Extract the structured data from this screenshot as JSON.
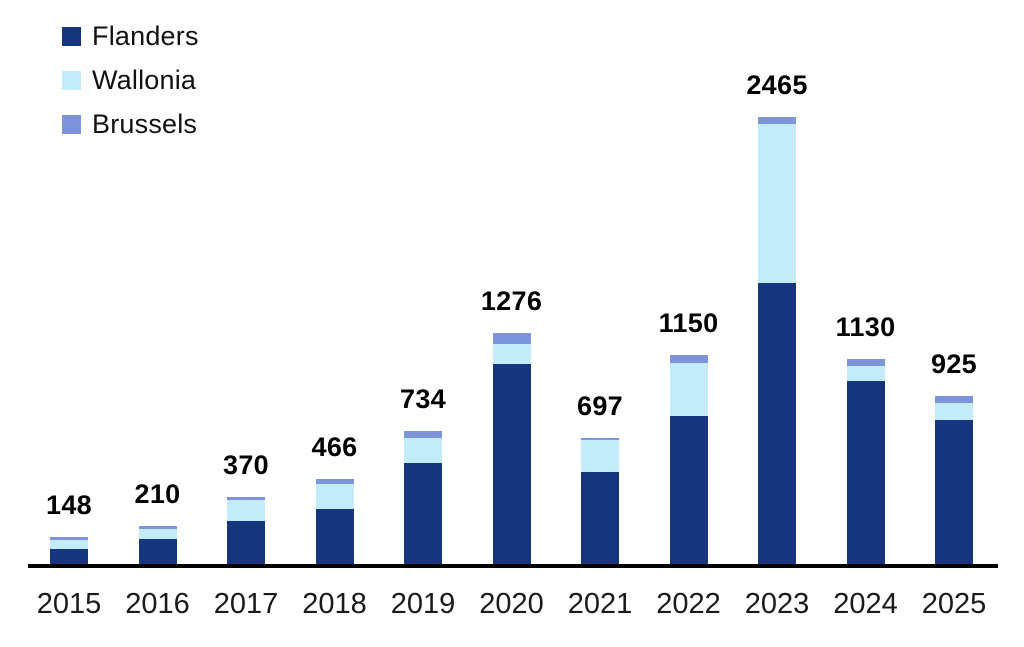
{
  "chart_data": {
    "type": "bar",
    "stacked": true,
    "title": "",
    "xlabel": "",
    "ylabel": "",
    "grid": false,
    "legend_position": "top-left",
    "ylim": [
      0,
      2465
    ],
    "categories": [
      "2015",
      "2016",
      "2017",
      "2018",
      "2019",
      "2020",
      "2021",
      "2022",
      "2023",
      "2024",
      "2025"
    ],
    "series": [
      {
        "name": "Flanders",
        "color": "#17357e",
        "values": [
          80,
          137,
          235,
          305,
          555,
          1102,
          505,
          818,
          1550,
          1007,
          795
        ]
      },
      {
        "name": "Wallonia",
        "color": "#c3ebfa",
        "values": [
          55,
          58,
          120,
          135,
          140,
          112,
          177,
          290,
          877,
          85,
          93
        ]
      },
      {
        "name": "Brussels",
        "color": "#7d94da",
        "values": [
          13,
          15,
          15,
          26,
          39,
          62,
          15,
          42,
          38,
          38,
          37
        ]
      }
    ],
    "totals": [
      148,
      210,
      370,
      466,
      734,
      1276,
      697,
      1150,
      2465,
      1130,
      925
    ],
    "total_labels": [
      "148",
      "210",
      "370",
      "466",
      "734",
      "1276",
      "697",
      "1150",
      "2465",
      "1130",
      "925"
    ]
  },
  "legend": {
    "items": [
      {
        "label": "Flanders",
        "color": "#17357e"
      },
      {
        "label": "Wallonia",
        "color": "#c3ebfa"
      },
      {
        "label": "Brussels",
        "color": "#7d94da"
      }
    ]
  }
}
